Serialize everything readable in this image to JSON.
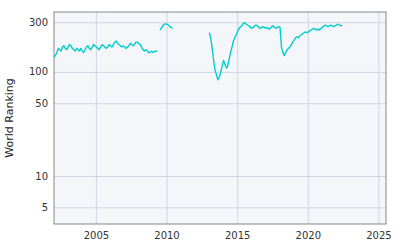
{
  "chart_data": {
    "type": "line",
    "ylabel": "World Ranking",
    "log": "y",
    "grid": true,
    "xlim": [
      2002.0,
      2025.5
    ],
    "xticks": [
      2005,
      2010,
      2015,
      2020,
      2025
    ],
    "ylim": [
      3.5,
      380
    ],
    "yticks": [
      5,
      10,
      50,
      100,
      300
    ],
    "series": [
      {
        "color": "#00CED1",
        "x": [
          2002.0,
          2002.1,
          2002.2,
          2002.3,
          2002.4,
          2002.5,
          2002.6,
          2002.7,
          2002.8,
          2002.9,
          2003.0,
          2003.1,
          2003.2,
          2003.3,
          2003.4,
          2003.5,
          2003.6,
          2003.7,
          2003.8,
          2003.9,
          2004.0,
          2004.1,
          2004.2,
          2004.3,
          2004.4,
          2004.5,
          2004.6,
          2004.7,
          2004.8,
          2004.9,
          2005.0,
          2005.1,
          2005.2,
          2005.3,
          2005.4,
          2005.5,
          2005.6,
          2005.7,
          2005.8,
          2005.9,
          2006.0,
          2006.1,
          2006.2,
          2006.3,
          2006.4,
          2006.5,
          2006.6,
          2006.7,
          2006.8,
          2006.9,
          2007.0,
          2007.1,
          2007.2,
          2007.3,
          2007.4,
          2007.5,
          2007.6,
          2007.7,
          2007.8,
          2007.9,
          2008.0,
          2008.1,
          2008.2,
          2008.3,
          2008.4,
          2008.5,
          2008.6,
          2008.7,
          2008.8,
          2008.9,
          2009.0,
          2009.1,
          2009.2,
          2009.3
        ],
        "values": [
          140,
          145,
          155,
          170,
          165,
          160,
          175,
          180,
          170,
          165,
          175,
          185,
          180,
          170,
          165,
          160,
          170,
          165,
          160,
          170,
          160,
          155,
          165,
          175,
          180,
          170,
          165,
          175,
          185,
          180,
          175,
          170,
          165,
          175,
          185,
          180,
          175,
          170,
          175,
          185,
          180,
          175,
          185,
          195,
          200,
          190,
          185,
          180,
          175,
          180,
          175,
          170,
          175,
          180,
          190,
          185,
          180,
          185,
          195,
          195,
          190,
          185,
          175,
          165,
          160,
          165,
          160,
          155,
          155,
          160,
          155,
          160,
          158,
          162
        ]
      },
      {
        "color": "#00CED1",
        "x": [
          2009.5,
          2009.6,
          2009.7,
          2009.8,
          2009.9,
          2010.0,
          2010.1,
          2010.2,
          2010.3,
          2010.4
        ],
        "values": [
          255,
          265,
          280,
          290,
          292,
          290,
          285,
          275,
          270,
          265
        ]
      },
      {
        "color": "#00CED1",
        "x": [
          2013.0,
          2013.1,
          2013.2,
          2013.3,
          2013.4,
          2013.5,
          2013.6,
          2013.7,
          2013.8,
          2013.9,
          2014.0,
          2014.1,
          2014.2,
          2014.3,
          2014.4,
          2014.5,
          2014.6,
          2014.7,
          2014.8,
          2014.9,
          2015.0,
          2015.1,
          2015.2,
          2015.3,
          2015.4,
          2015.5,
          2015.6,
          2015.7,
          2015.8,
          2015.9,
          2016.0,
          2016.1,
          2016.2,
          2016.3,
          2016.4,
          2016.5,
          2016.6,
          2016.7,
          2016.8,
          2016.9,
          2017.0,
          2017.1,
          2017.2,
          2017.3,
          2017.4,
          2017.5,
          2017.6,
          2017.7,
          2017.8,
          2017.9,
          2018.0,
          2018.1,
          2018.2,
          2018.3,
          2018.4,
          2018.5,
          2018.6,
          2018.7,
          2018.8,
          2018.9,
          2019.0,
          2019.1,
          2019.2,
          2019.3,
          2019.4,
          2019.5,
          2019.6,
          2019.7,
          2019.8,
          2019.9,
          2020.0,
          2020.1,
          2020.2,
          2020.3,
          2020.4,
          2020.5,
          2020.6,
          2020.7,
          2020.8,
          2020.9,
          2021.0,
          2021.1,
          2021.2,
          2021.3,
          2021.4,
          2021.5,
          2021.6,
          2021.7,
          2021.8,
          2021.9,
          2022.0,
          2022.1,
          2022.2,
          2022.3,
          2022.4
        ],
        "values": [
          240,
          210,
          170,
          130,
          105,
          95,
          85,
          90,
          100,
          115,
          130,
          120,
          110,
          115,
          135,
          155,
          175,
          200,
          215,
          230,
          250,
          265,
          275,
          280,
          295,
          300,
          290,
          285,
          280,
          270,
          265,
          270,
          280,
          285,
          280,
          270,
          265,
          270,
          275,
          270,
          265,
          270,
          260,
          265,
          275,
          280,
          270,
          265,
          270,
          275,
          270,
          175,
          155,
          145,
          155,
          165,
          170,
          175,
          185,
          195,
          205,
          215,
          220,
          215,
          225,
          230,
          235,
          240,
          245,
          240,
          245,
          250,
          255,
          260,
          265,
          260,
          255,
          260,
          255,
          265,
          270,
          280,
          285,
          280,
          275,
          280,
          285,
          280,
          275,
          280,
          285,
          290,
          285,
          280,
          285
        ]
      }
    ]
  }
}
